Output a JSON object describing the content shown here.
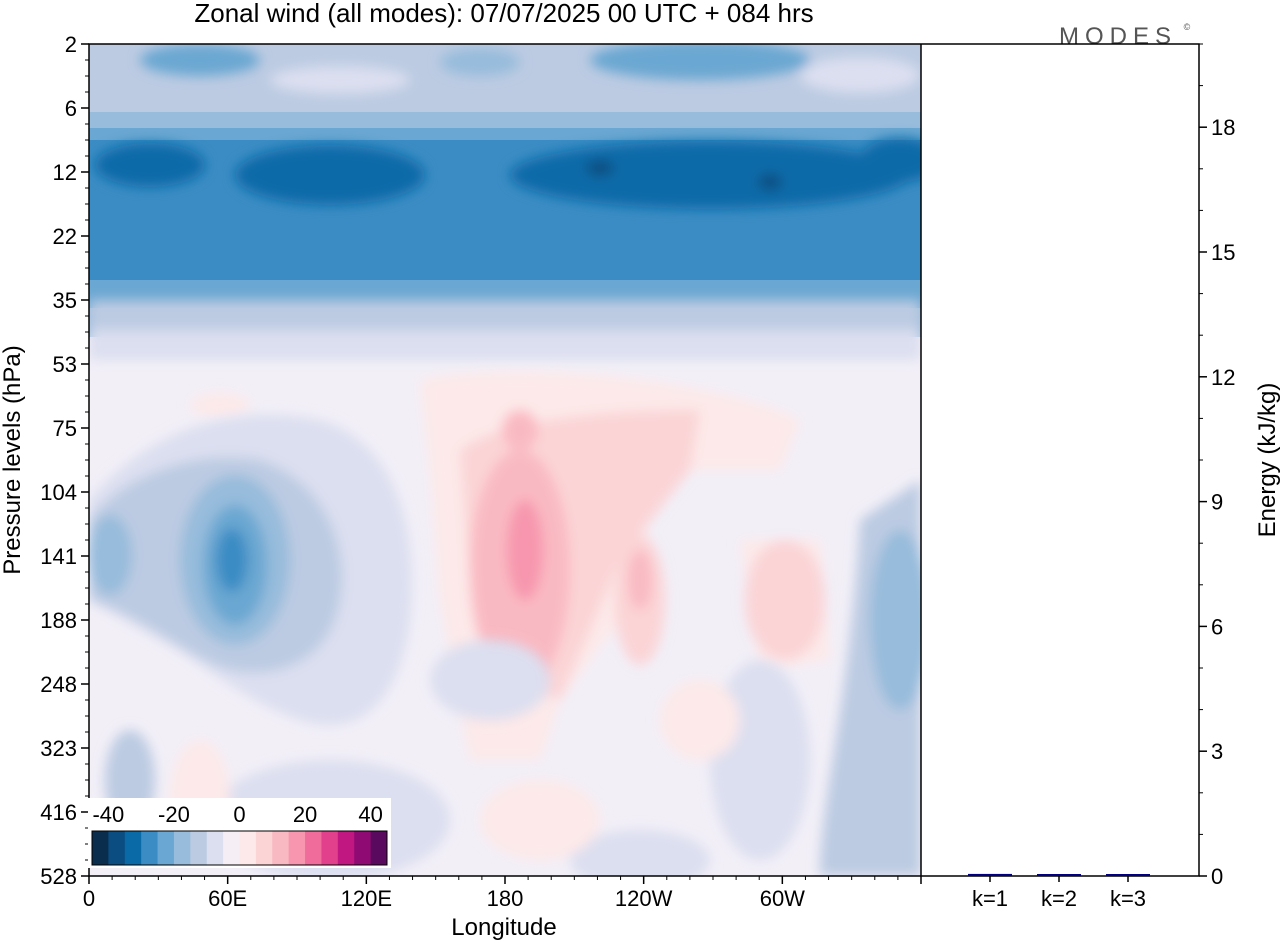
{
  "title": "Zonal wind (all modes):  07/07/2025  00 UTC  + 084 hrs",
  "logo_text": "MODES",
  "logo_mark": "©",
  "chart_data": [
    {
      "type": "heatmap",
      "xlabel": "Longitude",
      "ylabel": "Pressure levels (hPa)",
      "x_ticks": [
        "0",
        "60E",
        "120E",
        "180",
        "120W",
        "60W"
      ],
      "x_tick_degrees": [
        0,
        60,
        120,
        180,
        240,
        300
      ],
      "xlim": [
        0,
        360
      ],
      "y_ticks": [
        "2",
        "6",
        "12",
        "22",
        "35",
        "53",
        "75",
        "104",
        "141",
        "188",
        "248",
        "323",
        "416",
        "528"
      ],
      "y_scale": "level index (pressure levels)",
      "colorbar": {
        "labels": [
          "-40",
          "-20",
          "0",
          "20",
          "40"
        ],
        "label_values": [
          -40,
          -20,
          0,
          20,
          40
        ],
        "range": [
          -45,
          45
        ],
        "step": 5,
        "colors": [
          "#0b2d4d",
          "#0b4d80",
          "#0a6aa8",
          "#3b8cc4",
          "#6aa7d2",
          "#97bcdc",
          "#bccbe2",
          "#dcdff0",
          "#f5eef5",
          "#fde9e9",
          "#fbd4d6",
          "#f9b9c2",
          "#f796ae",
          "#f06c9b",
          "#e23f8c",
          "#c11780",
          "#8f0a73",
          "#5a0a5e"
        ]
      }
    },
    {
      "type": "bar",
      "ylabel": "Energy (kJ/kg)",
      "categories": [
        "k=1",
        "k=2",
        "k=3"
      ],
      "values": [
        0.05,
        0.03,
        0.03
      ],
      "bar_color": "#000080",
      "ylim": [
        0,
        20
      ],
      "y_ticks": [
        "0",
        "3",
        "6",
        "9",
        "12",
        "15",
        "18"
      ],
      "y_tick_values": [
        0,
        3,
        6,
        9,
        12,
        15,
        18
      ]
    }
  ]
}
